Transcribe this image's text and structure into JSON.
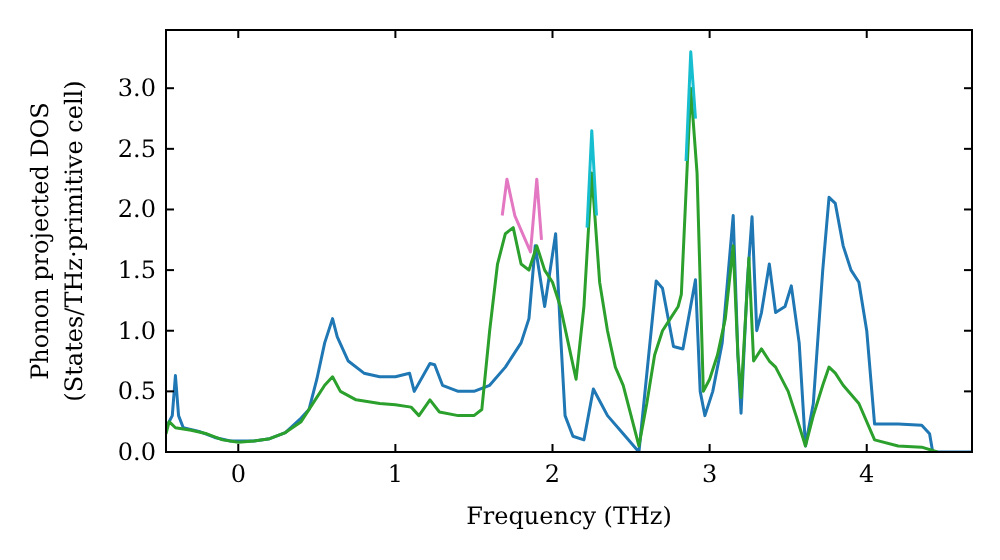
{
  "chart_data": {
    "type": "line",
    "xlabel": "Frequency (THz)",
    "ylabel": "Phonon projected DOS\n(States/THz·primitive cell)",
    "xlim": [
      -0.46,
      4.67
    ],
    "ylim": [
      0,
      3.48
    ],
    "xticks": [
      0,
      1,
      2,
      3,
      4
    ],
    "yticks": [
      {
        "value": 0,
        "label": "0.0"
      },
      {
        "value": 0.5,
        "label": "0.5"
      },
      {
        "value": 1,
        "label": "1.0"
      },
      {
        "value": 1.5,
        "label": "1.5"
      },
      {
        "value": 2,
        "label": "2.0"
      },
      {
        "value": 2.5,
        "label": "2.5"
      },
      {
        "value": 3,
        "label": "3.0"
      }
    ],
    "grid": false,
    "series": [
      {
        "color": "#1f77b4",
        "x": [
          -0.46,
          -0.42,
          -0.4,
          -0.38,
          -0.35,
          -0.25,
          -0.15,
          -0.05,
          0.1,
          0.2,
          0.3,
          0.4,
          0.45,
          0.5,
          0.55,
          0.6,
          0.63,
          0.7,
          0.8,
          0.9,
          1,
          1.09,
          1.12,
          1.22,
          1.25,
          1.3,
          1.4,
          1.5,
          1.6,
          1.7,
          1.8,
          1.85,
          1.89,
          1.95,
          2.02,
          2.05,
          2.08,
          2.13,
          2.2,
          2.26,
          2.35,
          2.45,
          2.55,
          2.66,
          2.7,
          2.77,
          2.83,
          2.91,
          2.94,
          2.97,
          3.02,
          3.08,
          3.15,
          3.18,
          3.2,
          3.24,
          3.27,
          3.3,
          3.33,
          3.38,
          3.42,
          3.48,
          3.52,
          3.57,
          3.61,
          3.66,
          3.72,
          3.76,
          3.8,
          3.85,
          3.9,
          3.95,
          4,
          4.05,
          4.2,
          4.35,
          4.4,
          4.42,
          4.67
        ],
        "values": [
          0.2,
          0.3,
          0.63,
          0.3,
          0.2,
          0.17,
          0.12,
          0.09,
          0.09,
          0.11,
          0.16,
          0.28,
          0.35,
          0.6,
          0.9,
          1.1,
          0.95,
          0.75,
          0.65,
          0.62,
          0.62,
          0.65,
          0.5,
          0.73,
          0.72,
          0.55,
          0.5,
          0.5,
          0.55,
          0.7,
          0.9,
          1.1,
          1.7,
          1.2,
          1.8,
          1.0,
          0.3,
          0.13,
          0.1,
          0.52,
          0.3,
          0.15,
          0.0,
          1.41,
          1.35,
          0.87,
          0.85,
          1.42,
          0.5,
          0.3,
          0.5,
          0.9,
          1.95,
          0.8,
          0.32,
          1.4,
          1.94,
          1.0,
          1.15,
          1.55,
          1.15,
          1.2,
          1.37,
          0.9,
          0.05,
          0.4,
          1.5,
          2.1,
          2.05,
          1.7,
          1.5,
          1.4,
          1.0,
          0.23,
          0.23,
          0.22,
          0.15,
          0,
          0
        ]
      },
      {
        "color": "#2ca02c",
        "x": [
          -0.46,
          -0.44,
          -0.4,
          -0.3,
          -0.2,
          -0.1,
          0,
          0.1,
          0.2,
          0.3,
          0.4,
          0.5,
          0.55,
          0.6,
          0.65,
          0.75,
          0.9,
          1,
          1.1,
          1.15,
          1.22,
          1.28,
          1.4,
          1.5,
          1.55,
          1.6,
          1.65,
          1.7,
          1.75,
          1.8,
          1.85,
          1.9,
          1.95,
          2,
          2.05,
          2.1,
          2.15,
          2.2,
          2.25,
          2.3,
          2.35,
          2.4,
          2.45,
          2.5,
          2.55,
          2.6,
          2.65,
          2.7,
          2.75,
          2.8,
          2.82,
          2.88,
          2.92,
          2.96,
          3,
          3.05,
          3.1,
          3.15,
          3.18,
          3.2,
          3.25,
          3.28,
          3.33,
          3.38,
          3.42,
          3.5,
          3.55,
          3.61,
          3.66,
          3.72,
          3.76,
          3.8,
          3.85,
          3.95,
          4.05,
          4.2,
          4.35,
          4.45
        ],
        "values": [
          0.15,
          0.25,
          0.2,
          0.18,
          0.15,
          0.1,
          0.08,
          0.09,
          0.11,
          0.16,
          0.25,
          0.45,
          0.55,
          0.62,
          0.5,
          0.43,
          0.4,
          0.39,
          0.37,
          0.3,
          0.43,
          0.33,
          0.3,
          0.3,
          0.35,
          1.0,
          1.55,
          1.8,
          1.85,
          1.55,
          1.5,
          1.7,
          1.5,
          1.4,
          1.2,
          0.9,
          0.6,
          1.2,
          2.3,
          1.4,
          1.0,
          0.7,
          0.55,
          0.3,
          0.05,
          0.4,
          0.8,
          1.0,
          1.1,
          1.2,
          1.3,
          3.0,
          2.3,
          0.5,
          0.6,
          0.8,
          1.1,
          1.7,
          0.8,
          0.45,
          1.6,
          0.75,
          0.85,
          0.75,
          0.7,
          0.5,
          0.3,
          0.05,
          0.3,
          0.55,
          0.7,
          0.65,
          0.55,
          0.4,
          0.1,
          0.05,
          0.04,
          0
        ]
      },
      {
        "color": "#e377c2",
        "x": [
          1.68,
          1.71,
          1.76,
          1.86,
          1.9,
          1.93
        ],
        "values": [
          1.95,
          2.25,
          1.95,
          1.65,
          2.25,
          1.75
        ]
      },
      {
        "color": "#17becf",
        "x": [
          2.22,
          2.25,
          2.28
        ],
        "values": [
          1.85,
          2.65,
          1.95
        ]
      },
      {
        "color": "#17becf",
        "x": [
          2.85,
          2.88,
          2.91
        ],
        "values": [
          2.4,
          3.3,
          2.75
        ]
      }
    ]
  }
}
